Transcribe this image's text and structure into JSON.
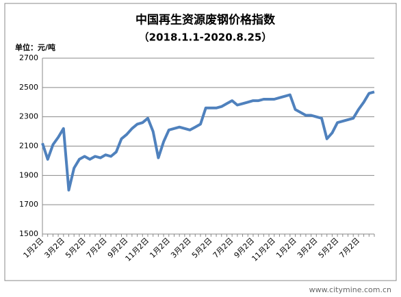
{
  "chart_data": {
    "type": "line",
    "title": "中国再生资源废钢价格指数",
    "subtitle": "（2018.1.1-2020.8.25）",
    "y_label": "单位：元/吨",
    "watermark": "www.citymine.com.cn",
    "categories": [
      "1月2日",
      null,
      null,
      null,
      "3月2日",
      null,
      null,
      null,
      "5月2日",
      null,
      null,
      null,
      "7月2日",
      null,
      null,
      null,
      "9月2日",
      null,
      null,
      null,
      "11月2日",
      null,
      null,
      null,
      "1月2日",
      null,
      null,
      null,
      "3月2日",
      null,
      null,
      null,
      "5月2日",
      null,
      null,
      null,
      "7月2日",
      null,
      null,
      null,
      "9月2日",
      null,
      null,
      null,
      "11月2日",
      null,
      null,
      null,
      "1月2日",
      null,
      null,
      null,
      "3月2日",
      null,
      null,
      null,
      "5月2日",
      null,
      null,
      null,
      "7月2日",
      null,
      null,
      null
    ],
    "series": [
      {
        "name": "废钢价格指数",
        "color": "#4f81bd",
        "values": [
          2120,
          2010,
          2110,
          2160,
          2220,
          1800,
          1950,
          2010,
          2030,
          2010,
          2030,
          2020,
          2040,
          2030,
          2060,
          2150,
          2180,
          2220,
          2250,
          2260,
          2290,
          2200,
          2020,
          2130,
          2210,
          2220,
          2230,
          2220,
          2210,
          2230,
          2250,
          2360,
          2360,
          2360,
          2370,
          2390,
          2410,
          2380,
          2390,
          2400,
          2410,
          2410,
          2420,
          2420,
          2420,
          2430,
          2440,
          2450,
          2350,
          2330,
          2310,
          2310,
          2300,
          2290,
          2150,
          2190,
          2260,
          2270,
          2280,
          2290,
          2350,
          2400,
          2460,
          2470
        ]
      }
    ],
    "ylim": [
      1500,
      2700
    ],
    "yticks": [
      1500,
      1700,
      1900,
      2100,
      2300,
      2500,
      2700
    ],
    "grid": true
  }
}
